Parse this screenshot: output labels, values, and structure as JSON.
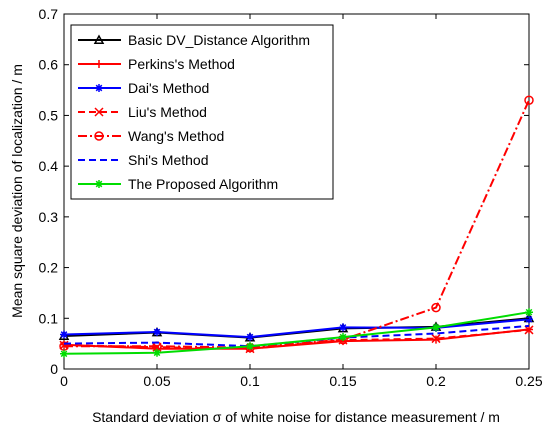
{
  "chart_data": {
    "type": "line",
    "xlabel": "Standard deviation σ of white noise for distance measurement / m",
    "ylabel": "Mean square deviation of localization / m",
    "x": [
      0,
      0.05,
      0.1,
      0.15,
      0.2,
      0.25
    ],
    "xlim": [
      0,
      0.25
    ],
    "ylim": [
      0,
      0.7
    ],
    "xticks": [
      "0",
      "0.05",
      "0.1",
      "0.15",
      "0.2",
      "0.25"
    ],
    "yticks": [
      "0",
      "0.1",
      "0.2",
      "0.3",
      "0.4",
      "0.5",
      "0.6",
      "0.7"
    ],
    "grid": false,
    "legend_position": "top-left",
    "series": [
      {
        "name": "Basic DV_Distance Algorithm",
        "values": [
          0.065,
          0.072,
          0.062,
          0.08,
          0.083,
          0.1
        ],
        "color": "#000000",
        "dash": "solid",
        "marker": "triangle"
      },
      {
        "name": "Perkins's Method",
        "values": [
          0.048,
          0.04,
          0.04,
          0.055,
          0.058,
          0.078
        ],
        "color": "#ff0000",
        "dash": "solid",
        "marker": "plus"
      },
      {
        "name": "Dai's Method",
        "values": [
          0.068,
          0.073,
          0.063,
          0.082,
          0.081,
          0.098
        ],
        "color": "#0000ff",
        "dash": "solid",
        "marker": "star"
      },
      {
        "name": "Liu's Method",
        "values": [
          0.047,
          0.043,
          0.04,
          0.057,
          0.06,
          0.077
        ],
        "color": "#ff0000",
        "dash": "dashed",
        "marker": "x"
      },
      {
        "name": "Wang's Method",
        "values": [
          0.045,
          0.045,
          0.042,
          0.058,
          0.121,
          0.53
        ],
        "color": "#ff0000",
        "dash": "dashdot",
        "marker": "circle"
      },
      {
        "name": "Shi's Method",
        "values": [
          0.05,
          0.052,
          0.045,
          0.062,
          0.07,
          0.085
        ],
        "color": "#0000ff",
        "dash": "dashed",
        "marker": "none"
      },
      {
        "name": "The Proposed Algorithm",
        "values": [
          0.03,
          0.032,
          0.045,
          0.063,
          0.082,
          0.112
        ],
        "color": "#00dd00",
        "dash": "solid",
        "marker": "star"
      }
    ]
  }
}
